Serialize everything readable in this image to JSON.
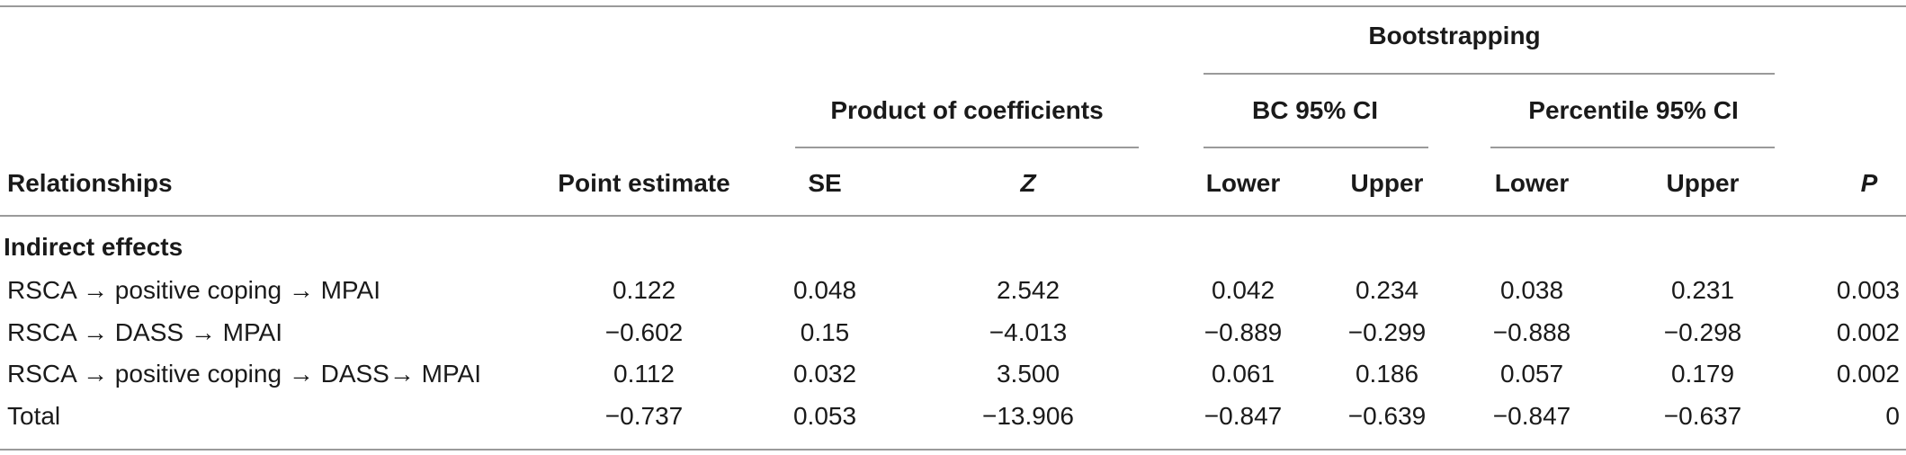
{
  "table": {
    "group_headers": {
      "bootstrapping": "Bootstrapping",
      "product_of_coefficients": "Product of coefficients",
      "bc_ci": "BC 95% CI",
      "percentile_ci": "Percentile 95% CI"
    },
    "columns": {
      "relationships": "Relationships",
      "point_estimate": "Point estimate",
      "se": "SE",
      "z": "Z",
      "bc_lower": "Lower",
      "bc_upper": "Upper",
      "pct_lower": "Lower",
      "pct_upper": "Upper",
      "p": "P"
    },
    "section_label": "Indirect effects",
    "rows": [
      {
        "relationship": "RSCA → positive coping → MPAI",
        "point_estimate": "0.122",
        "se": "0.048",
        "z": "2.542",
        "bc_lower": "0.042",
        "bc_upper": "0.234",
        "pct_lower": "0.038",
        "pct_upper": "0.231",
        "p": "0.003"
      },
      {
        "relationship": "RSCA → DASS → MPAI",
        "point_estimate": "−0.602",
        "se": "0.15",
        "z": "−4.013",
        "bc_lower": "−0.889",
        "bc_upper": "−0.299",
        "pct_lower": "−0.888",
        "pct_upper": "−0.298",
        "p": "0.002"
      },
      {
        "relationship": "RSCA → positive coping → DASS→ MPAI",
        "point_estimate": "0.112",
        "se": "0.032",
        "z": "3.500",
        "bc_lower": "0.061",
        "bc_upper": "0.186",
        "pct_lower": "0.057",
        "pct_upper": "0.179",
        "p": "0.002"
      },
      {
        "relationship": "Total",
        "point_estimate": "−0.737",
        "se": "0.053",
        "z": "−13.906",
        "bc_lower": "−0.847",
        "bc_upper": "−0.639",
        "pct_lower": "−0.847",
        "pct_upper": "−0.637",
        "p": "0"
      }
    ]
  }
}
